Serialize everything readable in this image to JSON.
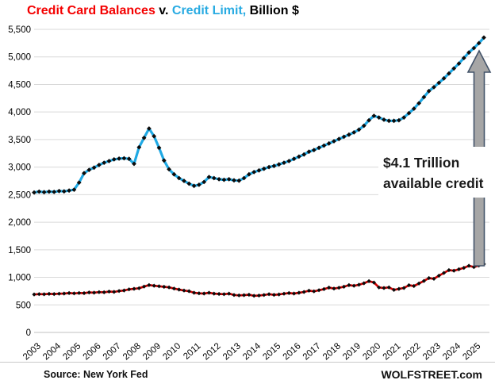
{
  "header": {
    "title": {
      "balances": "Credit Card Balances",
      "sep": " v. ",
      "limit": "Credit Limit,",
      "suffix": " Billion $"
    },
    "colors": {
      "balances_red": "#f40000",
      "limit_blue": "#29abe2"
    }
  },
  "footer": {
    "source": "Source:  New York Fed",
    "brand": "WOLFSTREET.com"
  },
  "chart_data": {
    "type": "line",
    "title": "Credit Card Balances v. Credit Limit, Billion $",
    "ylabel": "Billion $",
    "ylim": [
      0,
      5500
    ],
    "ytick_step": 500,
    "grid": "horizontal only",
    "legend_position": "in-title (colored words)",
    "frequency": "quarterly",
    "x_start": "2003 Q1",
    "x_end": "2025 Q3",
    "x_years": [
      "2003",
      "2004",
      "2005",
      "2006",
      "2007",
      "2008",
      "2009",
      "2010",
      "2011",
      "2012",
      "2013",
      "2014",
      "2015",
      "2016",
      "2017",
      "2018",
      "2019",
      "2020",
      "2021",
      "2022",
      "2023",
      "2024",
      "2025"
    ],
    "yticks": [
      {
        "v": 0,
        "label": "0"
      },
      {
        "v": 500,
        "label": "500"
      },
      {
        "v": 1000,
        "label": "1,000"
      },
      {
        "v": 1500,
        "label": "1,500"
      },
      {
        "v": 2000,
        "label": "2,000"
      },
      {
        "v": 2500,
        "label": "2,500"
      },
      {
        "v": 3000,
        "label": "3,000"
      },
      {
        "v": 3500,
        "label": "3,500"
      },
      {
        "v": 4000,
        "label": "4,000"
      },
      {
        "v": 4500,
        "label": "4,500"
      },
      {
        "v": 5000,
        "label": "5,000"
      },
      {
        "v": 5500,
        "label": "5,500"
      }
    ],
    "series": [
      {
        "name": "Credit Limit",
        "color": "#1fa9e4",
        "marker": "black-diamond",
        "values": [
          2540,
          2555,
          2545,
          2555,
          2550,
          2565,
          2560,
          2575,
          2590,
          2720,
          2890,
          2950,
          2990,
          3040,
          3080,
          3110,
          3140,
          3155,
          3160,
          3150,
          3060,
          3360,
          3530,
          3700,
          3560,
          3350,
          3120,
          2960,
          2870,
          2800,
          2750,
          2700,
          2660,
          2680,
          2730,
          2820,
          2800,
          2780,
          2770,
          2780,
          2760,
          2755,
          2800,
          2870,
          2910,
          2940,
          2970,
          3000,
          3020,
          3050,
          3080,
          3110,
          3150,
          3190,
          3230,
          3280,
          3310,
          3350,
          3390,
          3430,
          3470,
          3510,
          3550,
          3590,
          3630,
          3680,
          3750,
          3850,
          3930,
          3900,
          3860,
          3840,
          3840,
          3850,
          3900,
          3980,
          4060,
          4160,
          4270,
          4380,
          4450,
          4530,
          4610,
          4700,
          4790,
          4880,
          4980,
          5080,
          5160,
          5250,
          5350
        ]
      },
      {
        "name": "Credit Card Balances",
        "color": "#cc0000",
        "marker": "black-diamond",
        "values": [
          690,
          695,
          692,
          700,
          697,
          702,
          706,
          714,
          708,
          716,
          712,
          726,
          722,
          732,
          728,
          742,
          736,
          752,
          762,
          782,
          792,
          802,
          832,
          860,
          848,
          838,
          828,
          818,
          796,
          778,
          760,
          748,
          720,
          710,
          706,
          720,
          704,
          698,
          694,
          704,
          680,
          672,
          676,
          684,
          665,
          670,
          680,
          694,
          682,
          690,
          702,
          714,
          706,
          720,
          734,
          758,
          746,
          766,
          786,
          814,
          796,
          810,
          830,
          858,
          846,
          866,
          892,
          930,
          906,
          816,
          806,
          818,
          772,
          790,
          806,
          856,
          842,
          888,
          934,
          986,
          974,
          1030,
          1080,
          1130,
          1120,
          1146,
          1172,
          1210,
          1186,
          1214,
          1240
        ]
      }
    ],
    "annotation": {
      "line1": "$4.1 Trillion",
      "line2": "available credit",
      "arrow": "gray vertical arrow from balances line up to limit line at far right"
    }
  }
}
